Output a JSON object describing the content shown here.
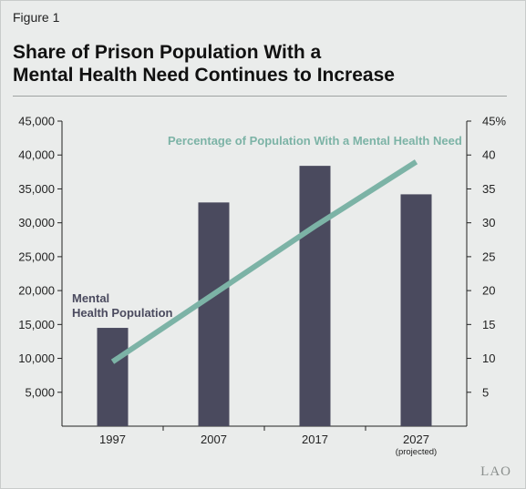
{
  "figure_label": "Figure 1",
  "title_lines": [
    "Share of Prison Population With a",
    "Mental Health Need Continues to Increase"
  ],
  "logo_text": "LAO",
  "chart_data": {
    "type": "bar",
    "categories": [
      "1997",
      "2007",
      "2017",
      "2027"
    ],
    "category_sublabels": [
      "",
      "",
      "",
      "(projected)"
    ],
    "series": [
      {
        "name_lines": [
          "Mental",
          "Health Population"
        ],
        "type": "bar",
        "axis": "left",
        "color": "#4a4a5e",
        "values": [
          14500,
          33000,
          38400,
          34200
        ]
      },
      {
        "name_lines": [
          "Percentage of Population With a Mental Health Need"
        ],
        "type": "line",
        "axis": "right",
        "color": "#7cb3a6",
        "values": [
          9.5,
          19.5,
          29.5,
          39
        ]
      }
    ],
    "y_left": {
      "ylim": [
        0,
        45000
      ],
      "ticks": [
        5000,
        10000,
        15000,
        20000,
        25000,
        30000,
        35000,
        40000,
        45000
      ],
      "tick_labels": [
        "5,000",
        "10,000",
        "15,000",
        "20,000",
        "25,000",
        "30,000",
        "35,000",
        "40,000",
        "45,000"
      ]
    },
    "y_right": {
      "ylim": [
        0,
        45
      ],
      "ticks": [
        5,
        10,
        15,
        20,
        25,
        30,
        35,
        40,
        45
      ],
      "tick_labels": [
        "5",
        "10",
        "15",
        "20",
        "25",
        "30",
        "35",
        "40",
        "45%"
      ]
    },
    "grid": false,
    "legend": "inline labels"
  }
}
